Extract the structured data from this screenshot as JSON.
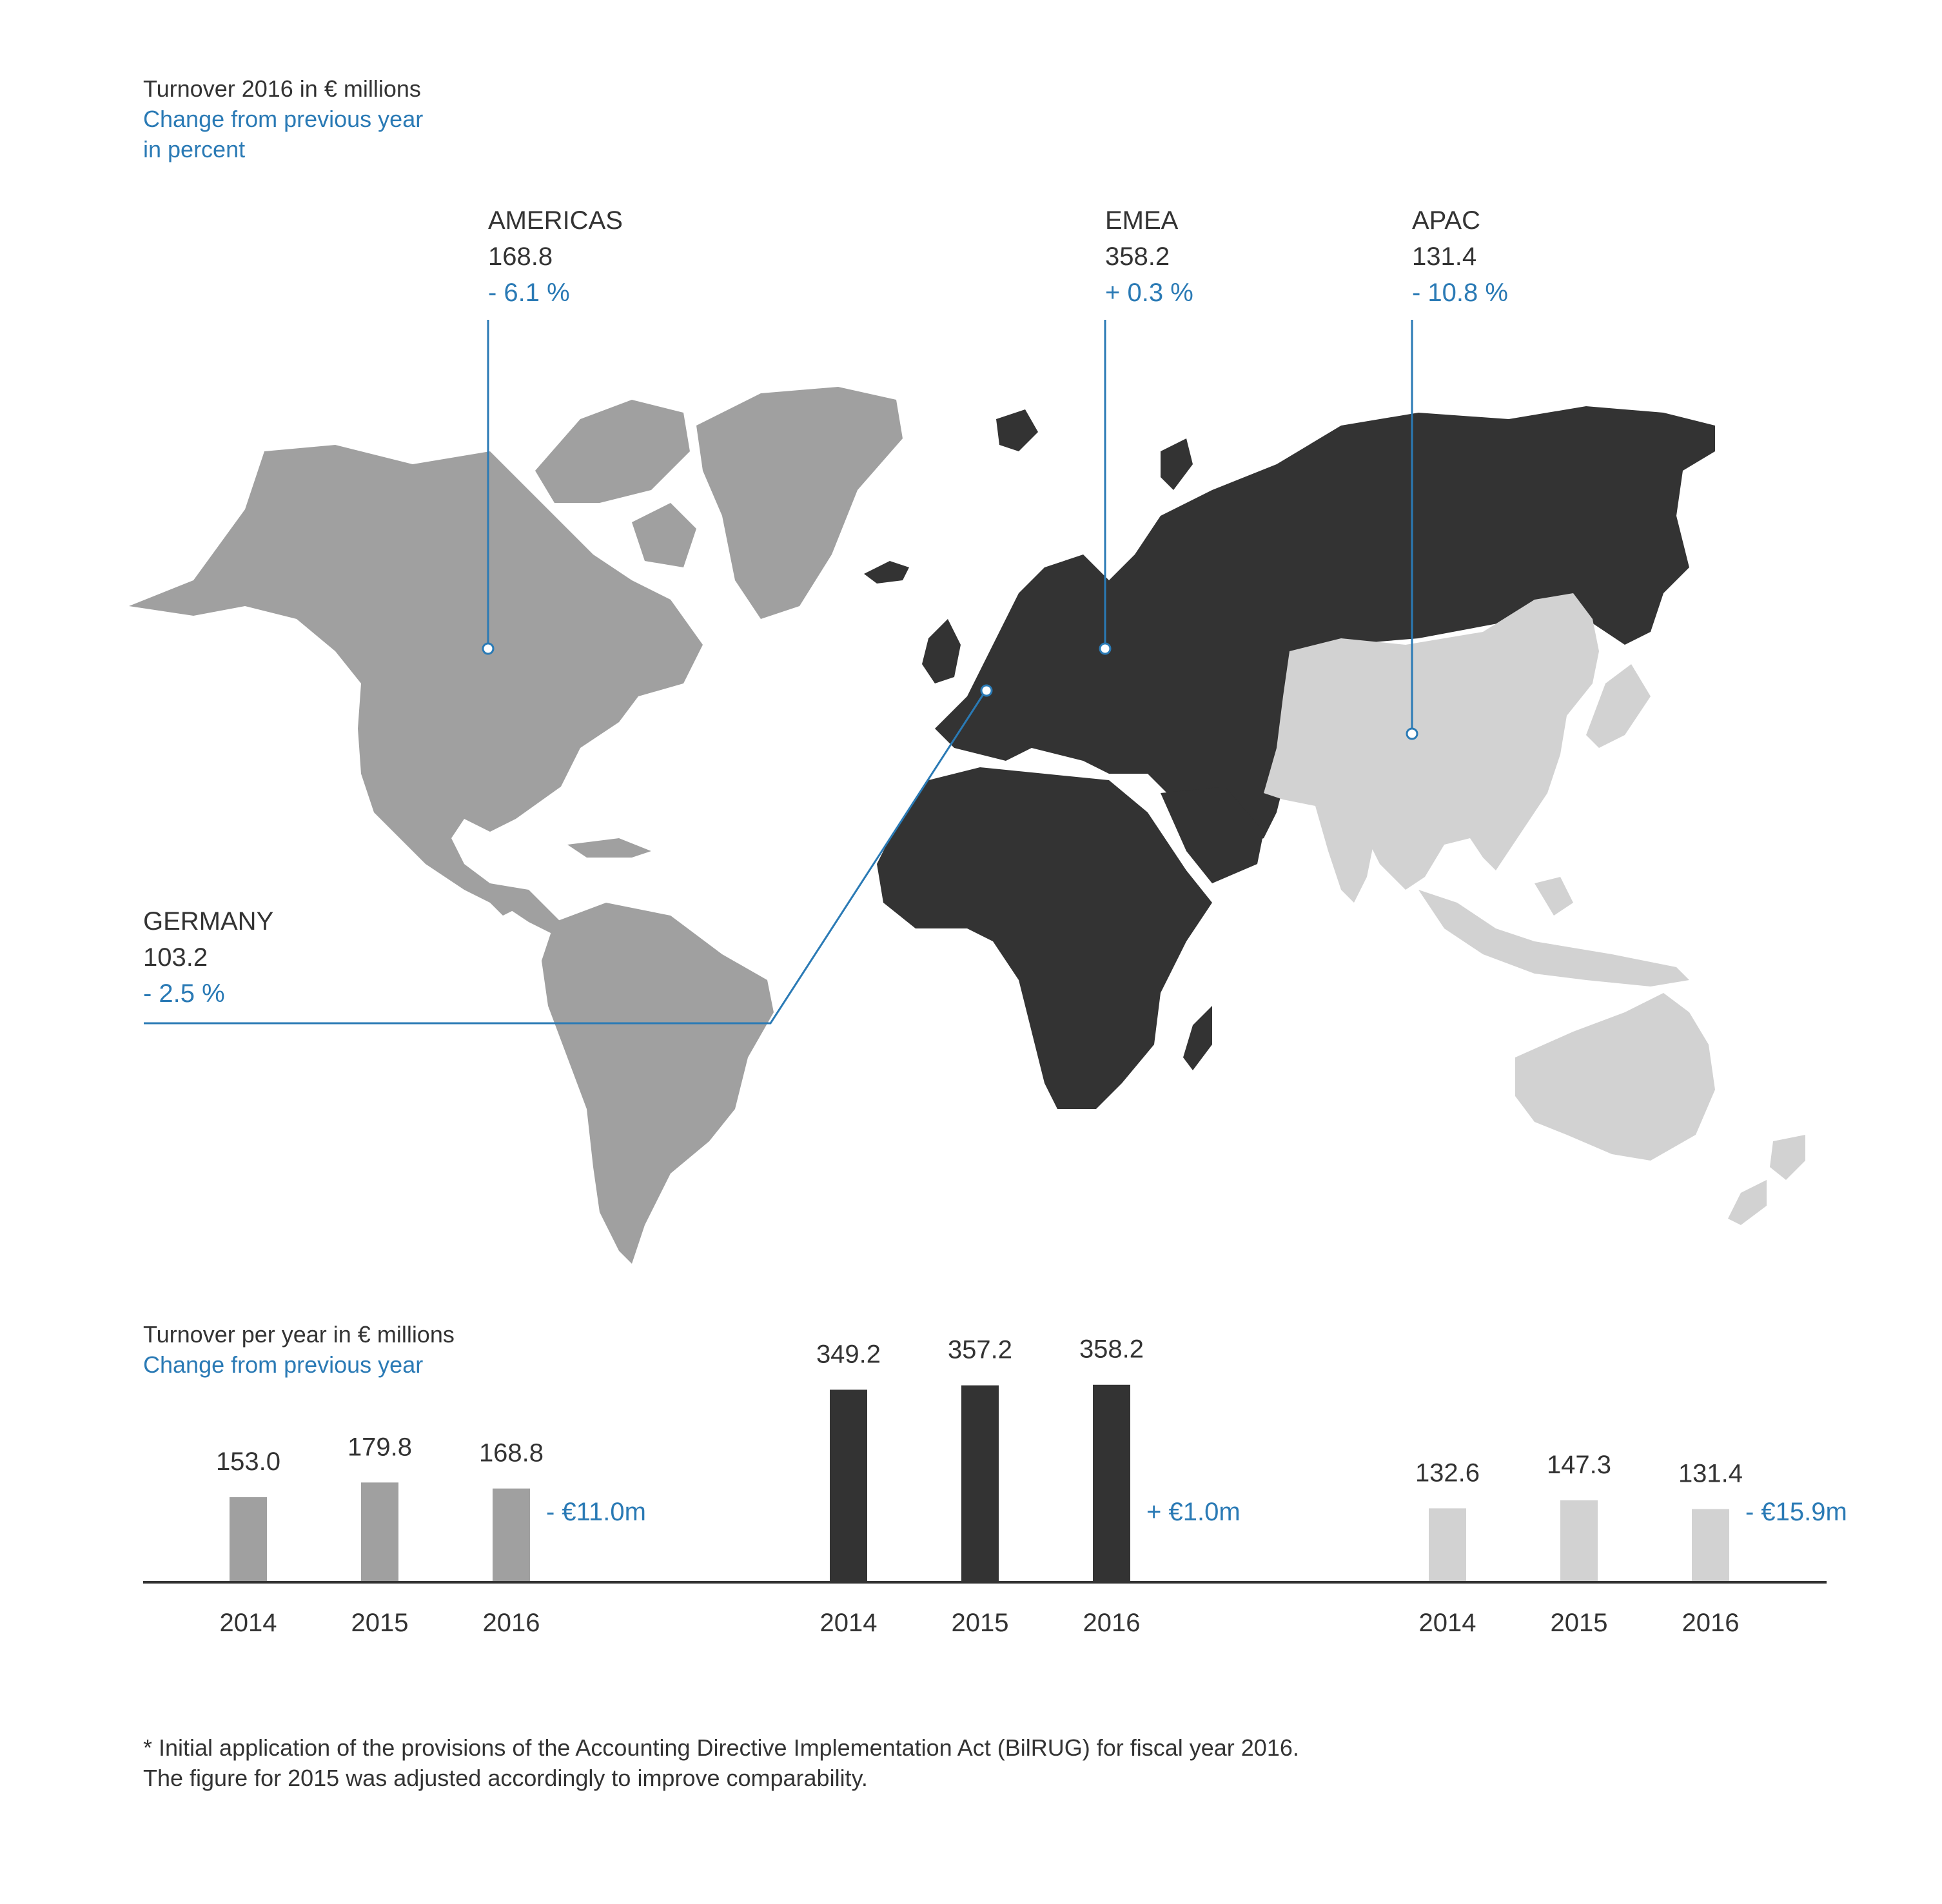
{
  "header": {
    "title": "Turnover 2016 in € millions",
    "subtitle_line1": "Change from previous year",
    "subtitle_line2": "in percent"
  },
  "regions": {
    "americas": {
      "name": "AMERICAS",
      "value": "168.8",
      "change": "- 6.1 %",
      "color": "#a0a0a0"
    },
    "emea": {
      "name": "EMEA",
      "value": "358.2",
      "change": "+ 0.3 %",
      "color": "#333333"
    },
    "apac": {
      "name": "APAC",
      "value": "131.4",
      "change": "- 10.8 %",
      "color": "#d2d2d2"
    },
    "germany": {
      "name": "GERMANY",
      "value": "103.2",
      "change": "- 2.5 %"
    }
  },
  "colors": {
    "accent": "#2a7ab5",
    "text": "#333333",
    "americas": "#a0a0a0",
    "emea": "#333333",
    "apac": "#d2d2d2"
  },
  "bar_section": {
    "title": "Turnover per year in € millions",
    "subtitle": "Change from previous year"
  },
  "chart_data": [
    {
      "type": "bar",
      "categories": [
        "2014",
        "2015",
        "2016"
      ],
      "values": [
        153.0,
        179.8,
        168.8
      ],
      "value_labels": [
        "153.0",
        "179.8",
        "168.8"
      ],
      "change": "- €11.0m",
      "color": "#a0a0a0"
    },
    {
      "type": "bar",
      "categories": [
        "2014",
        "2015",
        "2016"
      ],
      "values": [
        349.2,
        357.2,
        358.2
      ],
      "value_labels": [
        "349.2",
        "357.2",
        "358.2"
      ],
      "change": "+ €1.0m",
      "color": "#333333"
    },
    {
      "type": "bar",
      "categories": [
        "2014",
        "2015",
        "2016"
      ],
      "values": [
        132.6,
        147.3,
        131.4
      ],
      "value_labels": [
        "132.6",
        "147.3",
        "131.4"
      ],
      "change": "- €15.9m",
      "color": "#d2d2d2"
    }
  ],
  "footnote": {
    "line1": "* Initial application of the provisions of the Accounting Directive Implementation Act (BilRUG) for fiscal year 2016.",
    "line2": "The figure for 2015 was adjusted accordingly to improve comparability."
  }
}
